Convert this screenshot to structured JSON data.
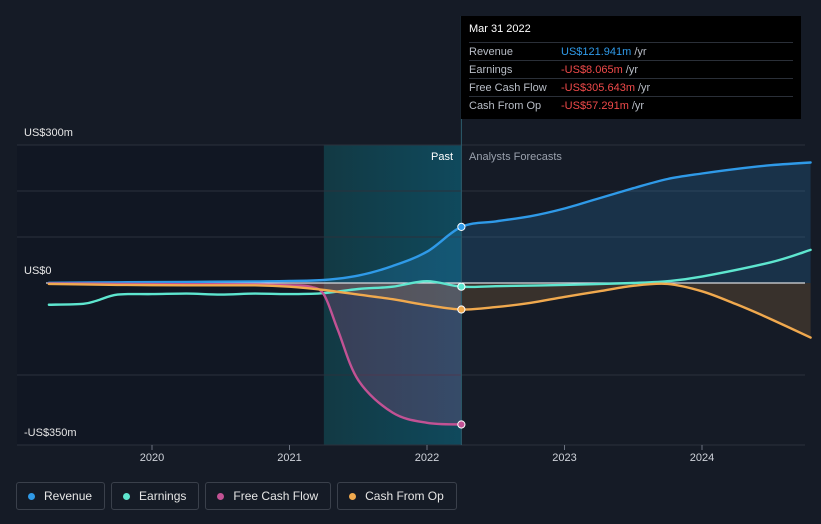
{
  "chart_data": {
    "type": "line",
    "y_axis": {
      "top_label": "US$300m",
      "zero_label": "US$0",
      "bottom_label": "-US$350m",
      "ylim": [
        -350,
        300
      ]
    },
    "x_ticks": [
      "2020",
      "2021",
      "2022",
      "2023",
      "2024"
    ],
    "xlim": [
      2019.23,
      2024.79
    ],
    "past_label": "Past",
    "forecast_label": "Analysts Forecasts",
    "highlight_start": 2021.25,
    "divider_x": 2022.25,
    "series": [
      {
        "name": "Revenue",
        "color": "#2f9ae8",
        "x": [
          2019.25,
          2019.75,
          2020.25,
          2020.75,
          2021.0,
          2021.25,
          2021.5,
          2021.75,
          2022.0,
          2022.25,
          2022.5,
          2022.75,
          2023.0,
          2023.25,
          2023.5,
          2023.75,
          2024.0,
          2024.25,
          2024.5,
          2024.79
        ],
        "values": [
          0.5,
          1.5,
          2.5,
          3.5,
          4.5,
          6.5,
          16,
          37,
          68,
          122,
          134,
          145,
          162,
          184,
          206,
          226,
          238,
          248,
          256,
          262
        ]
      },
      {
        "name": "Earnings",
        "color": "#5ee6cf",
        "x": [
          2019.25,
          2019.5,
          2019.6,
          2019.75,
          2020.0,
          2020.25,
          2020.5,
          2020.75,
          2021.0,
          2021.25,
          2021.5,
          2021.75,
          2022.0,
          2022.25,
          2022.5,
          2023.0,
          2023.5,
          2023.75,
          2024.0,
          2024.5,
          2024.79
        ],
        "values": [
          -47,
          -45,
          -38,
          -25,
          -24,
          -23,
          -25,
          -23,
          -24,
          -22,
          -13,
          -8,
          4,
          -8,
          -7,
          -4,
          0,
          4,
          14,
          45,
          72
        ]
      },
      {
        "name": "Free Cash Flow",
        "color": "#c25294",
        "x": [
          2019.25,
          2019.75,
          2020.25,
          2020.75,
          2021.0,
          2021.15,
          2021.25,
          2021.35,
          2021.5,
          2021.75,
          2022.0,
          2022.25
        ],
        "values": [
          -1,
          -2,
          -2.5,
          -3,
          -5,
          -8,
          -25,
          -100,
          -210,
          -280,
          -302,
          -305.643
        ]
      },
      {
        "name": "Cash From Op",
        "color": "#f0a94e",
        "x": [
          2019.25,
          2019.75,
          2020.25,
          2020.75,
          2021.0,
          2021.25,
          2021.5,
          2021.75,
          2022.0,
          2022.25,
          2022.5,
          2022.75,
          2023.0,
          2023.25,
          2023.5,
          2023.75,
          2024.0,
          2024.25,
          2024.5,
          2024.79
        ],
        "values": [
          -2,
          -4,
          -5,
          -5,
          -8,
          -15,
          -25,
          -35,
          -48,
          -57.291,
          -52,
          -43,
          -30,
          -18,
          -6,
          -2,
          -18,
          -46,
          -78,
          -118
        ]
      }
    ]
  },
  "tooltip": {
    "date": "Mar 31 2022",
    "rows": [
      {
        "name": "Revenue",
        "value": "US$121.941m",
        "unit": "/yr",
        "color": "#2f9ae8"
      },
      {
        "name": "Earnings",
        "value": "-US$8.065m",
        "unit": "/yr",
        "color": "#f04a4a"
      },
      {
        "name": "Free Cash Flow",
        "value": "-US$305.643m",
        "unit": "/yr",
        "color": "#f04a4a"
      },
      {
        "name": "Cash From Op",
        "value": "-US$57.291m",
        "unit": "/yr",
        "color": "#f04a4a"
      }
    ]
  },
  "legend": [
    {
      "label": "Revenue",
      "color": "#2f9ae8"
    },
    {
      "label": "Earnings",
      "color": "#5ee6cf"
    },
    {
      "label": "Free Cash Flow",
      "color": "#c25294"
    },
    {
      "label": "Cash From Op",
      "color": "#f0a94e"
    }
  ]
}
